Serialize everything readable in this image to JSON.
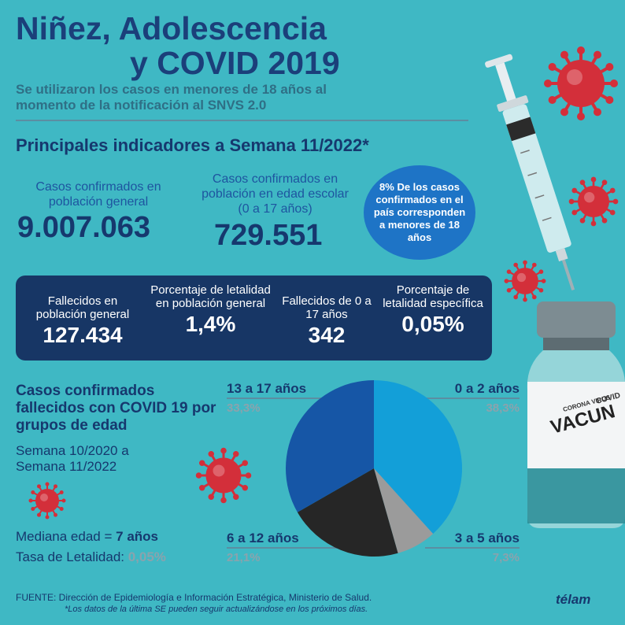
{
  "header": {
    "title_line1": "Niñez, Adolescencia",
    "title_line2": "y COVID 2019",
    "subtitle": "Se utilizaron los casos en menores de 18 años al momento de la notificación al SNVS 2.0"
  },
  "section_title": "Principales indicadores a Semana 11/2022*",
  "indicators": {
    "general_cases_label": "Casos confirmados en población general",
    "general_cases_value": "9.007.063",
    "school_cases_label": "Casos confirmados en población en edad escolar (0 a 17 años)",
    "school_cases_value": "729.551",
    "bubble_text": "8% De los casos confirmados en el país corresponden a menores de 18 años"
  },
  "panel": [
    {
      "label": "Fallecidos en población general",
      "value": "127.434"
    },
    {
      "label": "Porcentaje de letalidad en población general",
      "value": "1,4%"
    },
    {
      "label": "Fallecidos de 0 a 17 años",
      "value": "342"
    },
    {
      "label": "Porcentaje de letalidad específica",
      "value": "0,05%"
    }
  ],
  "pie_section": {
    "title": "Casos confirmados fallecidos con COVID 19 por grupos de edad",
    "period": "Semana 10/2020 a Semana 11/2022",
    "median_label": "Mediana edad = ",
    "median_value": "7 años",
    "lethality_label": "Tasa de Letalidad: ",
    "lethality_value": "0,05%"
  },
  "chart_data": {
    "type": "pie",
    "slices": [
      {
        "label": "0 a 2 años",
        "pct_label": "38,3%",
        "value": 38.3,
        "color": "#139fd8"
      },
      {
        "label": "3 a 5 años",
        "pct_label": "7,3%",
        "value": 7.3,
        "color": "#9b9b9b"
      },
      {
        "label": "6 a 12 años",
        "pct_label": "21,1%",
        "value": 21.1,
        "color": "#262626"
      },
      {
        "label": "13 a 17 años",
        "pct_label": "33,3%",
        "value": 33.3,
        "color": "#1656a6"
      }
    ]
  },
  "footer": {
    "source": "FUENTE:  Dirección de Epidemiología e Información Estratégica, Ministerio de Salud.",
    "note": "*Los datos de la última SE pueden seguir actualizándose en los próximos días.",
    "logo": "télam"
  },
  "decor": {
    "vial_line1": "CORONA VIRUS",
    "vial_line2": "COVID",
    "vial_word": "VACUN"
  },
  "colors": {
    "background": "#3fb8c4",
    "navy": "#16386e",
    "virus": "#d32f3a"
  }
}
